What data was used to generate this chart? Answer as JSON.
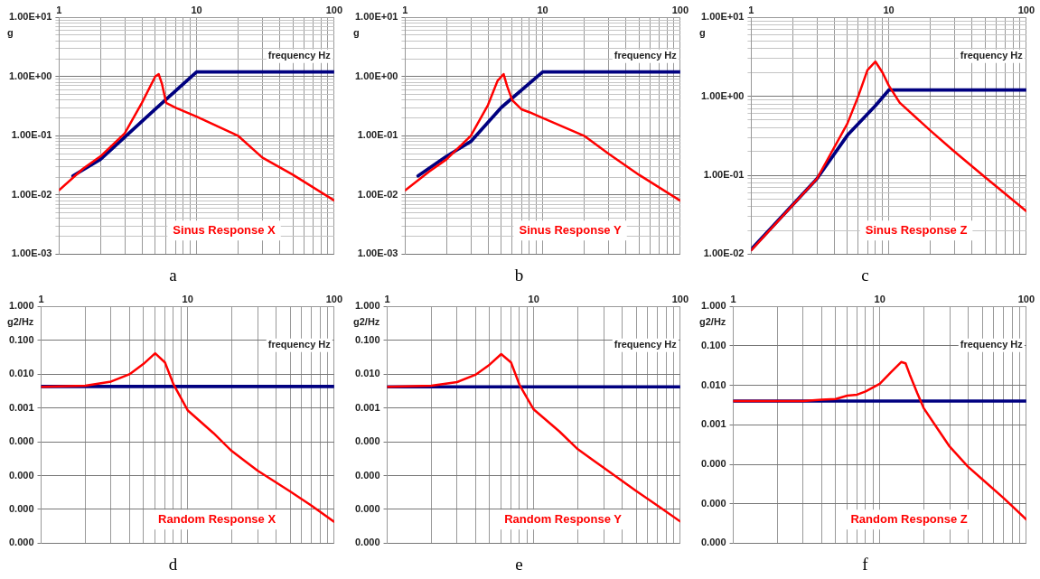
{
  "chart_data": [
    {
      "type": "line",
      "title": "Sinus Response X",
      "xlabel": "frequency Hz",
      "ylabel": "g",
      "annotations": [
        "a"
      ],
      "log": "xy",
      "grid": true,
      "legend": false,
      "marker": "none",
      "line_style": "solid",
      "xlim": [
        1,
        100
      ],
      "ylim": [
        0.001,
        10
      ],
      "xticks": [
        1,
        {
          "value": 2,
          "label": null
        },
        {
          "value": 3,
          "label": null
        },
        {
          "value": 4,
          "label": null
        },
        {
          "value": 5,
          "label": null
        },
        {
          "value": 6,
          "label": null
        },
        {
          "value": 7,
          "label": null
        },
        {
          "value": 8,
          "label": null
        },
        {
          "value": 9,
          "label": null
        },
        10,
        {
          "value": 20,
          "label": null
        },
        {
          "value": 30,
          "label": null
        },
        {
          "value": 40,
          "label": null
        },
        {
          "value": 50,
          "label": null
        },
        {
          "value": 60,
          "label": null
        },
        {
          "value": 70,
          "label": null
        },
        {
          "value": 80,
          "label": null
        },
        {
          "value": 90,
          "label": null
        },
        100
      ],
      "yticks": [
        {
          "value": 0.001,
          "label": "1.00E-03"
        },
        {
          "value": 0.002,
          "label": null
        },
        {
          "value": 0.003,
          "label": null
        },
        {
          "value": 0.004,
          "label": null
        },
        {
          "value": 0.005,
          "label": null
        },
        {
          "value": 0.006,
          "label": null
        },
        {
          "value": 0.007,
          "label": null
        },
        {
          "value": 0.008,
          "label": null
        },
        {
          "value": 0.009,
          "label": null
        },
        {
          "value": 0.01,
          "label": "1.00E-02"
        },
        {
          "value": 0.02,
          "label": null
        },
        {
          "value": 0.03,
          "label": null
        },
        {
          "value": 0.04,
          "label": null
        },
        {
          "value": 0.05,
          "label": null
        },
        {
          "value": 0.06,
          "label": null
        },
        {
          "value": 0.07,
          "label": null
        },
        {
          "value": 0.08,
          "label": null
        },
        {
          "value": 0.09,
          "label": null
        },
        {
          "value": 0.1,
          "label": "1.00E-01"
        },
        {
          "value": 0.2,
          "label": null
        },
        {
          "value": 0.3,
          "label": null
        },
        {
          "value": 0.4,
          "label": null
        },
        {
          "value": 0.5,
          "label": null
        },
        {
          "value": 0.6,
          "label": null
        },
        {
          "value": 0.7,
          "label": null
        },
        {
          "value": 0.8,
          "label": null
        },
        {
          "value": 0.9,
          "label": null
        },
        {
          "value": 1,
          "label": "1.00E+00"
        },
        {
          "value": 2,
          "label": null
        },
        {
          "value": 3,
          "label": null
        },
        {
          "value": 4,
          "label": null
        },
        {
          "value": 5,
          "label": null
        },
        {
          "value": 6,
          "label": null
        },
        {
          "value": 7,
          "label": null
        },
        {
          "value": 8,
          "label": null
        },
        {
          "value": 9,
          "label": null
        },
        {
          "value": 10,
          "label": "1.00E+01"
        }
      ],
      "series": [
        {
          "color": "#000080",
          "x": [
            1.26,
            2,
            5,
            10,
            100
          ],
          "values": [
            0.021,
            0.04,
            0.28,
            1.2,
            1.2
          ]
        },
        {
          "color": "#ff0000",
          "x": [
            1,
            1.5,
            2,
            3,
            4,
            5,
            5.3,
            5.6,
            6,
            7,
            10,
            20,
            30,
            50,
            100
          ],
          "values": [
            0.012,
            0.028,
            0.045,
            0.11,
            0.36,
            1.0,
            1.1,
            0.75,
            0.36,
            0.3,
            0.21,
            0.1,
            0.043,
            0.022,
            0.0081
          ]
        }
      ]
    },
    {
      "type": "line",
      "title": "Sinus Response Y",
      "xlabel": "frequency Hz",
      "ylabel": "g",
      "annotations": [
        "b"
      ],
      "log": "xy",
      "grid": true,
      "legend": false,
      "marker": "none",
      "line_style": "solid",
      "xlim": [
        1,
        100
      ],
      "ylim": [
        0.001,
        10
      ],
      "xticks": [
        1,
        {
          "value": 2,
          "label": null
        },
        {
          "value": 3,
          "label": null
        },
        {
          "value": 4,
          "label": null
        },
        {
          "value": 5,
          "label": null
        },
        {
          "value": 6,
          "label": null
        },
        {
          "value": 7,
          "label": null
        },
        {
          "value": 8,
          "label": null
        },
        {
          "value": 9,
          "label": null
        },
        10,
        {
          "value": 20,
          "label": null
        },
        {
          "value": 30,
          "label": null
        },
        {
          "value": 40,
          "label": null
        },
        {
          "value": 50,
          "label": null
        },
        {
          "value": 60,
          "label": null
        },
        {
          "value": 70,
          "label": null
        },
        {
          "value": 80,
          "label": null
        },
        {
          "value": 90,
          "label": null
        },
        100
      ],
      "yticks": [
        {
          "value": 0.001,
          "label": "1.00E-03"
        },
        {
          "value": 0.002,
          "label": null
        },
        {
          "value": 0.003,
          "label": null
        },
        {
          "value": 0.004,
          "label": null
        },
        {
          "value": 0.005,
          "label": null
        },
        {
          "value": 0.006,
          "label": null
        },
        {
          "value": 0.007,
          "label": null
        },
        {
          "value": 0.008,
          "label": null
        },
        {
          "value": 0.009,
          "label": null
        },
        {
          "value": 0.01,
          "label": "1.00E-02"
        },
        {
          "value": 0.02,
          "label": null
        },
        {
          "value": 0.03,
          "label": null
        },
        {
          "value": 0.04,
          "label": null
        },
        {
          "value": 0.05,
          "label": null
        },
        {
          "value": 0.06,
          "label": null
        },
        {
          "value": 0.07,
          "label": null
        },
        {
          "value": 0.08,
          "label": null
        },
        {
          "value": 0.09,
          "label": null
        },
        {
          "value": 0.1,
          "label": "1.00E-01"
        },
        {
          "value": 0.2,
          "label": null
        },
        {
          "value": 0.3,
          "label": null
        },
        {
          "value": 0.4,
          "label": null
        },
        {
          "value": 0.5,
          "label": null
        },
        {
          "value": 0.6,
          "label": null
        },
        {
          "value": 0.7,
          "label": null
        },
        {
          "value": 0.8,
          "label": null
        },
        {
          "value": 0.9,
          "label": null
        },
        {
          "value": 1,
          "label": "1.00E+00"
        },
        {
          "value": 2,
          "label": null
        },
        {
          "value": 3,
          "label": null
        },
        {
          "value": 4,
          "label": null
        },
        {
          "value": 5,
          "label": null
        },
        {
          "value": 6,
          "label": null
        },
        {
          "value": 7,
          "label": null
        },
        {
          "value": 8,
          "label": null
        },
        {
          "value": 9,
          "label": null
        },
        {
          "value": 10,
          "label": "1.00E+01"
        }
      ],
      "series": [
        {
          "color": "#000080",
          "x": [
            1.24,
            2,
            3,
            5,
            10,
            100
          ],
          "values": [
            0.021,
            0.045,
            0.08,
            0.3,
            1.2,
            1.2
          ]
        },
        {
          "color": "#ff0000",
          "x": [
            1,
            1.5,
            2,
            3,
            4,
            4.7,
            5.2,
            5.5,
            6,
            7,
            8,
            10,
            20,
            30,
            50,
            100
          ],
          "values": [
            0.012,
            0.025,
            0.04,
            0.1,
            0.33,
            0.85,
            1.1,
            0.7,
            0.4,
            0.28,
            0.25,
            0.2,
            0.1,
            0.05,
            0.022,
            0.008
          ]
        }
      ]
    },
    {
      "type": "line",
      "title": "Sinus Response Z",
      "xlabel": "frequency Hz",
      "ylabel": "g",
      "annotations": [
        "c"
      ],
      "log": "xy",
      "grid": true,
      "legend": false,
      "marker": "none",
      "line_style": "solid",
      "xlim": [
        1,
        100
      ],
      "ylim": [
        0.01,
        10
      ],
      "xticks": [
        1,
        {
          "value": 2,
          "label": null
        },
        {
          "value": 3,
          "label": null
        },
        {
          "value": 4,
          "label": null
        },
        {
          "value": 5,
          "label": null
        },
        {
          "value": 6,
          "label": null
        },
        {
          "value": 7,
          "label": null
        },
        {
          "value": 8,
          "label": null
        },
        {
          "value": 9,
          "label": null
        },
        10,
        {
          "value": 20,
          "label": null
        },
        {
          "value": 30,
          "label": null
        },
        {
          "value": 40,
          "label": null
        },
        {
          "value": 50,
          "label": null
        },
        {
          "value": 60,
          "label": null
        },
        {
          "value": 70,
          "label": null
        },
        {
          "value": 80,
          "label": null
        },
        {
          "value": 90,
          "label": null
        },
        100
      ],
      "yticks": [
        {
          "value": 0.01,
          "label": "1.00E-02"
        },
        {
          "value": 0.02,
          "label": null
        },
        {
          "value": 0.03,
          "label": null
        },
        {
          "value": 0.04,
          "label": null
        },
        {
          "value": 0.05,
          "label": null
        },
        {
          "value": 0.06,
          "label": null
        },
        {
          "value": 0.07,
          "label": null
        },
        {
          "value": 0.08,
          "label": null
        },
        {
          "value": 0.09,
          "label": null
        },
        {
          "value": 0.1,
          "label": "1.00E-01"
        },
        {
          "value": 0.2,
          "label": null
        },
        {
          "value": 0.3,
          "label": null
        },
        {
          "value": 0.4,
          "label": null
        },
        {
          "value": 0.5,
          "label": null
        },
        {
          "value": 0.6,
          "label": null
        },
        {
          "value": 0.7,
          "label": null
        },
        {
          "value": 0.8,
          "label": null
        },
        {
          "value": 0.9,
          "label": null
        },
        {
          "value": 1,
          "label": "1.00E+00"
        },
        {
          "value": 2,
          "label": null
        },
        {
          "value": 3,
          "label": null
        },
        {
          "value": 4,
          "label": null
        },
        {
          "value": 5,
          "label": null
        },
        {
          "value": 6,
          "label": null
        },
        {
          "value": 7,
          "label": null
        },
        {
          "value": 8,
          "label": null
        },
        {
          "value": 9,
          "label": null
        },
        {
          "value": 10,
          "label": "1.00E+01"
        }
      ],
      "series": [
        {
          "color": "#000080",
          "x": [
            1,
            3,
            5,
            8,
            10,
            100
          ],
          "values": [
            0.0115,
            0.09,
            0.32,
            0.76,
            1.2,
            1.2
          ]
        },
        {
          "color": "#ff0000",
          "x": [
            1,
            3,
            5,
            6,
            7,
            8,
            9,
            10,
            12,
            20,
            30,
            50,
            100
          ],
          "values": [
            0.0112,
            0.09,
            0.45,
            1.0,
            2.15,
            2.75,
            2.0,
            1.37,
            0.83,
            0.37,
            0.2,
            0.095,
            0.035
          ]
        }
      ]
    },
    {
      "type": "line",
      "title": "Random Response X",
      "xlabel": "frequency Hz",
      "ylabel": "g2/Hz",
      "annotations": [
        "d"
      ],
      "log": "xy",
      "grid": true,
      "legend": false,
      "marker": "none",
      "line_style": "solid",
      "xlim": [
        1,
        100
      ],
      "ylim": [
        1e-07,
        1
      ],
      "xticks": [
        1,
        {
          "value": 2,
          "label": null
        },
        {
          "value": 3,
          "label": null
        },
        {
          "value": 4,
          "label": null
        },
        {
          "value": 5,
          "label": null
        },
        {
          "value": 6,
          "label": null
        },
        {
          "value": 7,
          "label": null
        },
        {
          "value": 8,
          "label": null
        },
        {
          "value": 9,
          "label": null
        },
        10,
        {
          "value": 20,
          "label": null
        },
        {
          "value": 30,
          "label": null
        },
        {
          "value": 40,
          "label": null
        },
        {
          "value": 50,
          "label": null
        },
        {
          "value": 60,
          "label": null
        },
        {
          "value": 70,
          "label": null
        },
        {
          "value": 80,
          "label": null
        },
        {
          "value": 90,
          "label": null
        },
        100
      ],
      "yticks": [
        {
          "value": 1e-07,
          "label": "0.000"
        },
        {
          "value": 1e-06,
          "label": "0.000"
        },
        {
          "value": 1e-05,
          "label": "0.000"
        },
        {
          "value": 0.0001,
          "label": "0.000"
        },
        {
          "value": 0.001,
          "label": "0.001"
        },
        {
          "value": 0.01,
          "label": "0.010"
        },
        {
          "value": 0.1,
          "label": "0.100"
        },
        {
          "value": 1,
          "label": "1.000"
        }
      ],
      "series": [
        {
          "color": "#000080",
          "x": [
            1,
            100
          ],
          "values": [
            0.0043,
            0.0043
          ]
        },
        {
          "color": "#ff0000",
          "x": [
            1,
            2,
            3,
            4,
            5,
            6,
            7,
            8,
            10,
            15,
            20,
            30,
            50,
            70,
            100
          ],
          "values": [
            0.0042,
            0.0045,
            0.006,
            0.0098,
            0.02,
            0.041,
            0.022,
            0.005,
            0.00085,
            0.00018,
            5.3e-05,
            1.4e-05,
            3.4e-06,
            1.3e-06,
            4.3e-07
          ]
        }
      ]
    },
    {
      "type": "line",
      "title": "Random Response Y",
      "xlabel": "frequency Hz",
      "ylabel": "g2/Hz",
      "annotations": [
        "e"
      ],
      "log": "xy",
      "grid": true,
      "legend": false,
      "marker": "none",
      "line_style": "solid",
      "xlim": [
        1,
        100
      ],
      "ylim": [
        1e-07,
        1
      ],
      "xticks": [
        1,
        {
          "value": 2,
          "label": null
        },
        {
          "value": 3,
          "label": null
        },
        {
          "value": 4,
          "label": null
        },
        {
          "value": 5,
          "label": null
        },
        {
          "value": 6,
          "label": null
        },
        {
          "value": 7,
          "label": null
        },
        {
          "value": 8,
          "label": null
        },
        {
          "value": 9,
          "label": null
        },
        10,
        {
          "value": 20,
          "label": null
        },
        {
          "value": 30,
          "label": null
        },
        {
          "value": 40,
          "label": null
        },
        {
          "value": 50,
          "label": null
        },
        {
          "value": 60,
          "label": null
        },
        {
          "value": 70,
          "label": null
        },
        {
          "value": 80,
          "label": null
        },
        {
          "value": 90,
          "label": null
        },
        100
      ],
      "yticks": [
        {
          "value": 1e-07,
          "label": "0.000"
        },
        {
          "value": 1e-06,
          "label": "0.000"
        },
        {
          "value": 1e-05,
          "label": "0.000"
        },
        {
          "value": 0.0001,
          "label": "0.000"
        },
        {
          "value": 0.001,
          "label": "0.001"
        },
        {
          "value": 0.01,
          "label": "0.010"
        },
        {
          "value": 0.1,
          "label": "0.100"
        },
        {
          "value": 1,
          "label": "1.000"
        }
      ],
      "series": [
        {
          "color": "#000080",
          "x": [
            1,
            100
          ],
          "values": [
            0.0042,
            0.0042
          ]
        },
        {
          "color": "#ff0000",
          "x": [
            1,
            2,
            3,
            4,
            5,
            6,
            7,
            8,
            10,
            15,
            20,
            30,
            50,
            70,
            100
          ],
          "values": [
            0.0042,
            0.0045,
            0.0058,
            0.0095,
            0.019,
            0.039,
            0.022,
            0.0048,
            0.0009,
            0.0002,
            6e-05,
            1.7e-05,
            3.5e-06,
            1.3e-06,
            4.4e-07
          ]
        }
      ]
    },
    {
      "type": "line",
      "title": "Random Response Z",
      "xlabel": "frequency Hz",
      "ylabel": "g2/Hz",
      "annotations": [
        "f"
      ],
      "log": "xy",
      "grid": true,
      "legend": false,
      "marker": "none",
      "line_style": "solid",
      "xlim": [
        1,
        100
      ],
      "ylim": [
        1e-06,
        1
      ],
      "xticks": [
        1,
        {
          "value": 2,
          "label": null
        },
        {
          "value": 3,
          "label": null
        },
        {
          "value": 4,
          "label": null
        },
        {
          "value": 5,
          "label": null
        },
        {
          "value": 6,
          "label": null
        },
        {
          "value": 7,
          "label": null
        },
        {
          "value": 8,
          "label": null
        },
        {
          "value": 9,
          "label": null
        },
        10,
        {
          "value": 20,
          "label": null
        },
        {
          "value": 30,
          "label": null
        },
        {
          "value": 40,
          "label": null
        },
        {
          "value": 50,
          "label": null
        },
        {
          "value": 60,
          "label": null
        },
        {
          "value": 70,
          "label": null
        },
        {
          "value": 80,
          "label": null
        },
        {
          "value": 90,
          "label": null
        },
        100
      ],
      "yticks": [
        {
          "value": 1e-06,
          "label": "0.000"
        },
        {
          "value": 1e-05,
          "label": "0.000"
        },
        {
          "value": 0.0001,
          "label": "0.000"
        },
        {
          "value": 0.001,
          "label": "0.001"
        },
        {
          "value": 0.01,
          "label": "0.010"
        },
        {
          "value": 0.1,
          "label": "0.100"
        },
        {
          "value": 1,
          "label": "1.000"
        }
      ],
      "series": [
        {
          "color": "#000080",
          "x": [
            1,
            100
          ],
          "values": [
            0.004,
            0.004
          ]
        },
        {
          "color": "#ff0000",
          "x": [
            1,
            3,
            4,
            5,
            6,
            7,
            8,
            10,
            12,
            14,
            15,
            16,
            18,
            20,
            25,
            30,
            40,
            50,
            70,
            100
          ],
          "values": [
            0.004,
            0.004,
            0.0043,
            0.0045,
            0.0055,
            0.0058,
            0.007,
            0.011,
            0.022,
            0.039,
            0.036,
            0.019,
            0.0064,
            0.0026,
            0.00076,
            0.00028,
            8.7e-05,
            4.2e-05,
            1.4e-05,
            4e-06
          ]
        }
      ]
    }
  ]
}
